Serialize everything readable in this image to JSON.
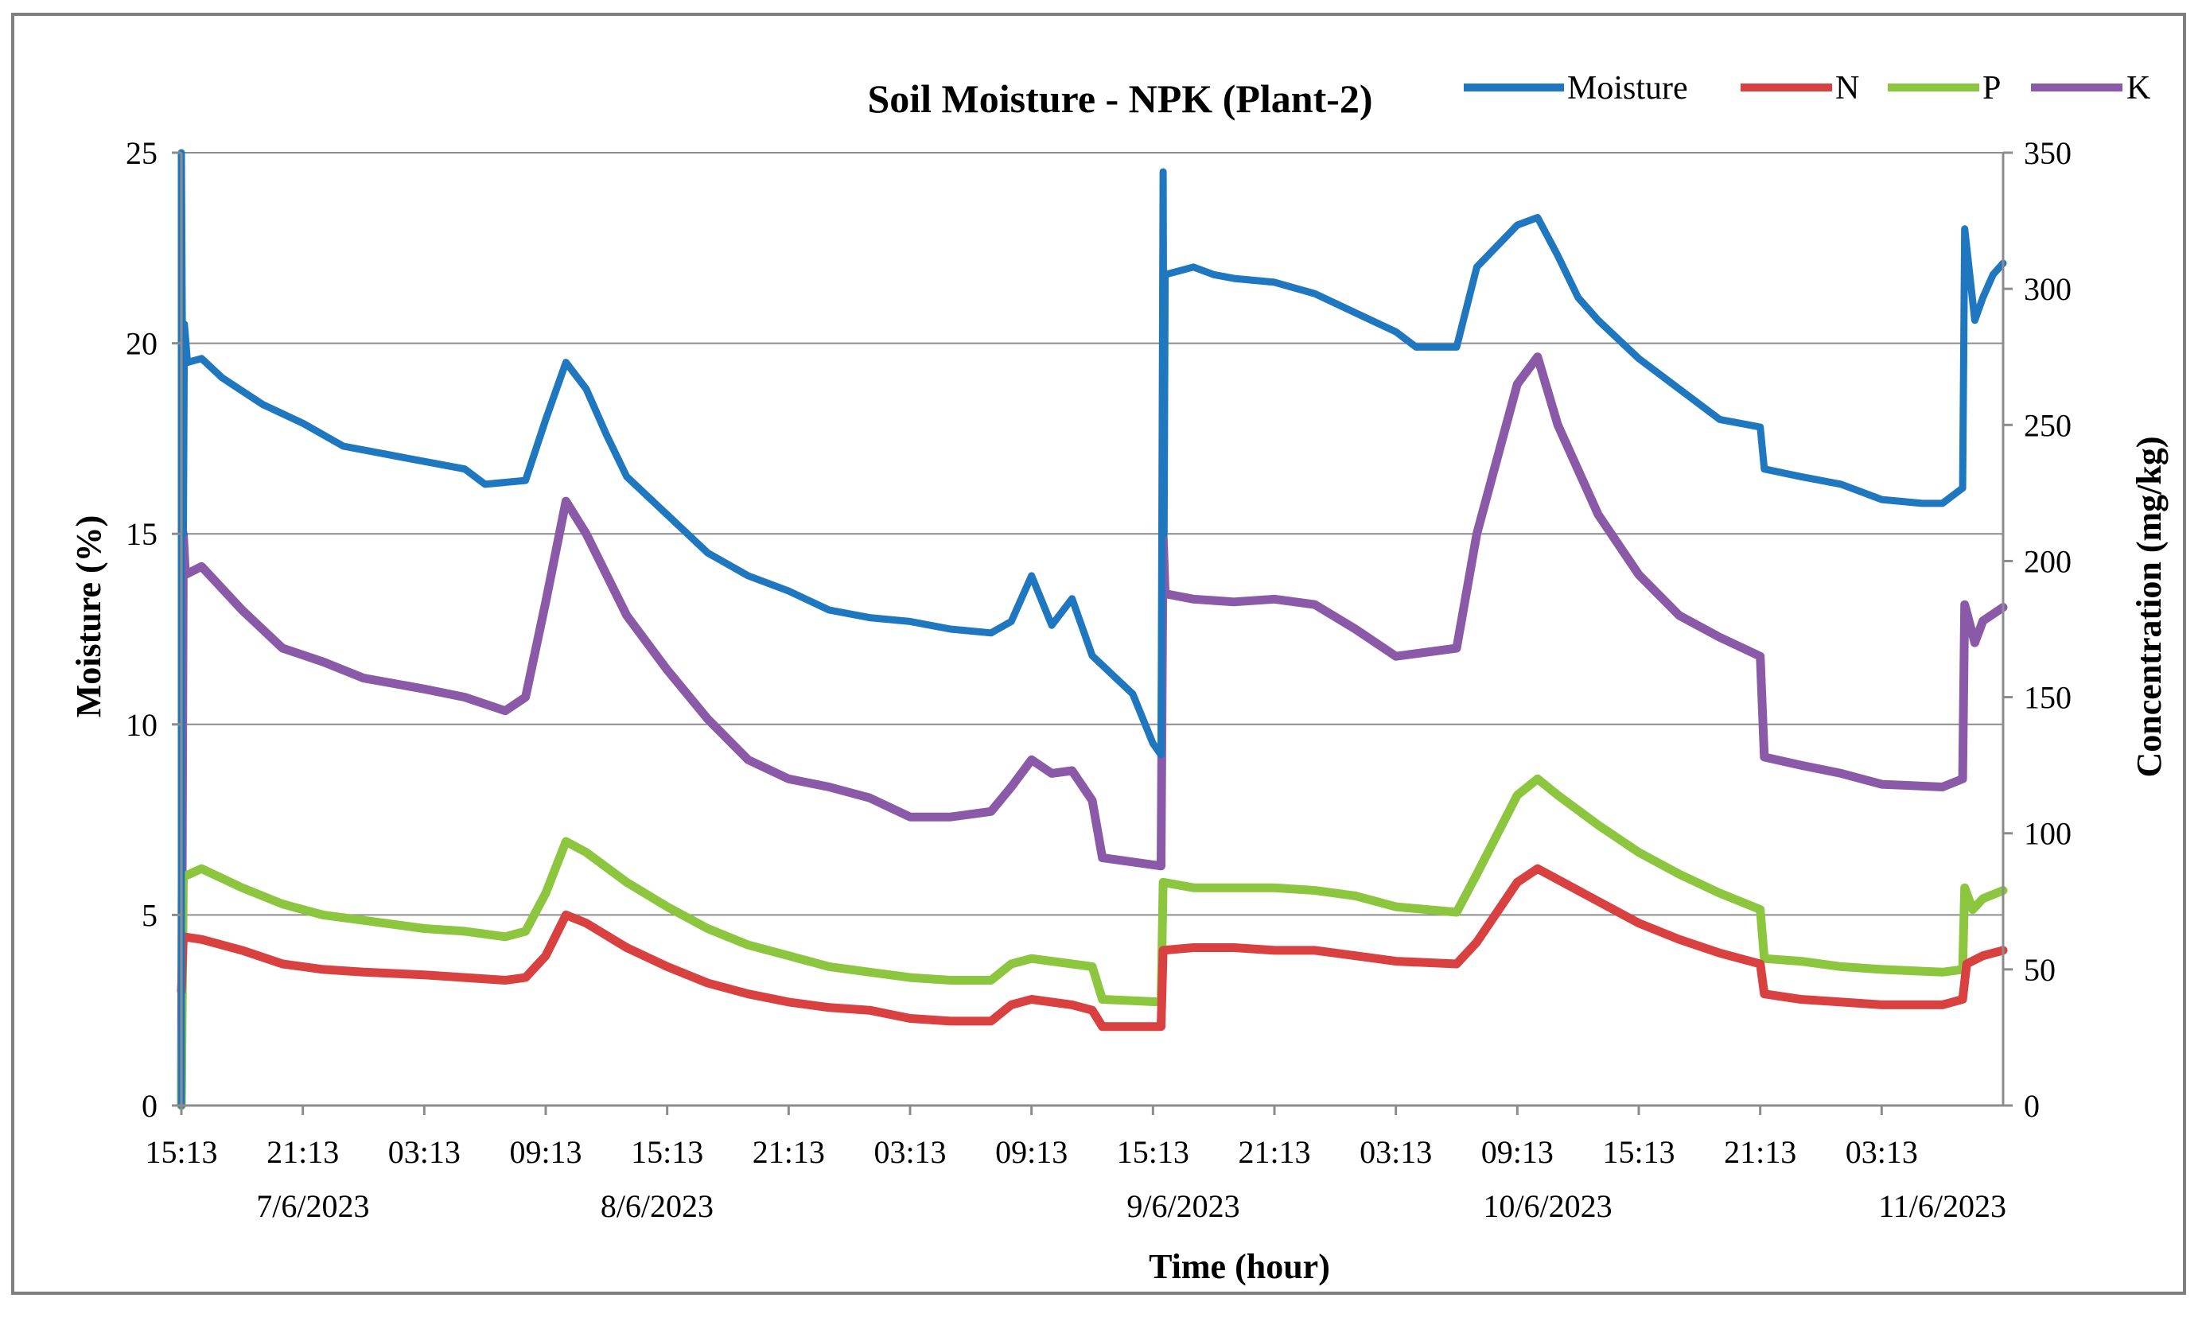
{
  "chart_data": {
    "type": "line",
    "title": "Soil Moisture - NPK (Plant-2)",
    "xlabel": "Time (hour)",
    "ylabel": "Moisture (%)",
    "y2label": "Concentration (mg/kg)",
    "ylim": [
      0,
      25
    ],
    "y2lim": [
      0,
      350
    ],
    "yticks": [
      0,
      5,
      10,
      15,
      20,
      25
    ],
    "y2ticks": [
      0,
      50,
      100,
      150,
      200,
      250,
      300,
      350
    ],
    "grid": "horizontal",
    "legend_position": "top-right",
    "x_range_hours": [
      0,
      90
    ],
    "xticks": [
      {
        "h": 0,
        "label": "15:13"
      },
      {
        "h": 6,
        "label": "21:13"
      },
      {
        "h": 12,
        "label": "03:13"
      },
      {
        "h": 18,
        "label": "09:13"
      },
      {
        "h": 24,
        "label": "15:13"
      },
      {
        "h": 30,
        "label": "21:13"
      },
      {
        "h": 36,
        "label": "03:13"
      },
      {
        "h": 42,
        "label": "09:13"
      },
      {
        "h": 48,
        "label": "15:13"
      },
      {
        "h": 54,
        "label": "21:13"
      },
      {
        "h": 60,
        "label": "03:13"
      },
      {
        "h": 66,
        "label": "09:13"
      },
      {
        "h": 72,
        "label": "15:13"
      },
      {
        "h": 78,
        "label": "21:13"
      },
      {
        "h": 84,
        "label": "03:13"
      }
    ],
    "date_labels": [
      {
        "h": 6.5,
        "label": "7/6/2023"
      },
      {
        "h": 23.5,
        "label": "8/6/2023"
      },
      {
        "h": 49.5,
        "label": "9/6/2023"
      },
      {
        "h": 67.5,
        "label": "10/6/2023"
      },
      {
        "h": 87,
        "label": "11/6/2023"
      }
    ],
    "series": [
      {
        "name": "Moisture",
        "axis": "left",
        "color": "#1f77c0",
        "points": [
          [
            0,
            0
          ],
          [
            0,
            25
          ],
          [
            0.1,
            15
          ],
          [
            0.15,
            20.5
          ],
          [
            0.3,
            19.5
          ],
          [
            1,
            19.6
          ],
          [
            2,
            19.1
          ],
          [
            4,
            18.4
          ],
          [
            6,
            17.9
          ],
          [
            8,
            17.3
          ],
          [
            10,
            17.1
          ],
          [
            12,
            16.9
          ],
          [
            14,
            16.7
          ],
          [
            15,
            16.3
          ],
          [
            17,
            16.4
          ],
          [
            18,
            18
          ],
          [
            19,
            19.5
          ],
          [
            20,
            18.8
          ],
          [
            21,
            17.6
          ],
          [
            22,
            16.5
          ],
          [
            24,
            15.5
          ],
          [
            26,
            14.5
          ],
          [
            28,
            13.9
          ],
          [
            30,
            13.5
          ],
          [
            32,
            13
          ],
          [
            34,
            12.8
          ],
          [
            36,
            12.7
          ],
          [
            38,
            12.5
          ],
          [
            40,
            12.4
          ],
          [
            41,
            12.7
          ],
          [
            42,
            13.9
          ],
          [
            43,
            12.6
          ],
          [
            44,
            13.3
          ],
          [
            45,
            11.8
          ],
          [
            47,
            10.8
          ],
          [
            48,
            9.5
          ],
          [
            48.4,
            9.2
          ],
          [
            48.5,
            24.5
          ],
          [
            48.55,
            15
          ],
          [
            48.6,
            21.8
          ],
          [
            50,
            22
          ],
          [
            51,
            21.8
          ],
          [
            52,
            21.7
          ],
          [
            54,
            21.6
          ],
          [
            56,
            21.3
          ],
          [
            58,
            20.8
          ],
          [
            60,
            20.3
          ],
          [
            61,
            19.9
          ],
          [
            63,
            19.9
          ],
          [
            64,
            22
          ],
          [
            66,
            23.1
          ],
          [
            67,
            23.3
          ],
          [
            68,
            22.3
          ],
          [
            69,
            21.2
          ],
          [
            70,
            20.6
          ],
          [
            72,
            19.6
          ],
          [
            74,
            18.8
          ],
          [
            76,
            18
          ],
          [
            78,
            17.8
          ],
          [
            78.2,
            16.7
          ],
          [
            80,
            16.5
          ],
          [
            82,
            16.3
          ],
          [
            84,
            15.9
          ],
          [
            86,
            15.8
          ],
          [
            87,
            15.8
          ],
          [
            88,
            16.2
          ],
          [
            88.1,
            23
          ],
          [
            88.6,
            20.6
          ],
          [
            89,
            21.2
          ],
          [
            89.5,
            21.8
          ],
          [
            90,
            22.1
          ]
        ]
      },
      {
        "name": "N",
        "axis": "right",
        "color": "#d94040",
        "points": [
          [
            0,
            42
          ],
          [
            0.1,
            62
          ],
          [
            1,
            61
          ],
          [
            3,
            57
          ],
          [
            5,
            52
          ],
          [
            7,
            50
          ],
          [
            9,
            49
          ],
          [
            12,
            48
          ],
          [
            14,
            47
          ],
          [
            16,
            46
          ],
          [
            17,
            47
          ],
          [
            18,
            55
          ],
          [
            19,
            70
          ],
          [
            20,
            67
          ],
          [
            22,
            58
          ],
          [
            24,
            51
          ],
          [
            26,
            45
          ],
          [
            28,
            41
          ],
          [
            30,
            38
          ],
          [
            32,
            36
          ],
          [
            34,
            35
          ],
          [
            36,
            32
          ],
          [
            38,
            31
          ],
          [
            40,
            31
          ],
          [
            41,
            37
          ],
          [
            42,
            39
          ],
          [
            44,
            37
          ],
          [
            45,
            35
          ],
          [
            45.5,
            29
          ],
          [
            48.4,
            29
          ],
          [
            48.5,
            57
          ],
          [
            50,
            58
          ],
          [
            52,
            58
          ],
          [
            54,
            57
          ],
          [
            56,
            57
          ],
          [
            58,
            55
          ],
          [
            60,
            53
          ],
          [
            63,
            52
          ],
          [
            64,
            60
          ],
          [
            66,
            82
          ],
          [
            67,
            87
          ],
          [
            68,
            83
          ],
          [
            70,
            75
          ],
          [
            72,
            67
          ],
          [
            74,
            61
          ],
          [
            76,
            56
          ],
          [
            78,
            52
          ],
          [
            78.2,
            41
          ],
          [
            80,
            39
          ],
          [
            82,
            38
          ],
          [
            84,
            37
          ],
          [
            87,
            37
          ],
          [
            88,
            39
          ],
          [
            88.2,
            52
          ],
          [
            89,
            55
          ],
          [
            90,
            57
          ]
        ]
      },
      {
        "name": "P",
        "axis": "right",
        "color": "#8cc63e",
        "points": [
          [
            0,
            0
          ],
          [
            0.1,
            84
          ],
          [
            1,
            87
          ],
          [
            3,
            80
          ],
          [
            5,
            74
          ],
          [
            7,
            70
          ],
          [
            9,
            68
          ],
          [
            12,
            65
          ],
          [
            14,
            64
          ],
          [
            16,
            62
          ],
          [
            17,
            64
          ],
          [
            18,
            78
          ],
          [
            19,
            97
          ],
          [
            20,
            93
          ],
          [
            22,
            82
          ],
          [
            24,
            73
          ],
          [
            26,
            65
          ],
          [
            28,
            59
          ],
          [
            30,
            55
          ],
          [
            32,
            51
          ],
          [
            34,
            49
          ],
          [
            36,
            47
          ],
          [
            38,
            46
          ],
          [
            40,
            46
          ],
          [
            41,
            52
          ],
          [
            42,
            54
          ],
          [
            44,
            52
          ],
          [
            45,
            51
          ],
          [
            45.5,
            39
          ],
          [
            48.4,
            38
          ],
          [
            48.5,
            82
          ],
          [
            50,
            80
          ],
          [
            52,
            80
          ],
          [
            54,
            80
          ],
          [
            56,
            79
          ],
          [
            58,
            77
          ],
          [
            60,
            73
          ],
          [
            63,
            71
          ],
          [
            64,
            85
          ],
          [
            66,
            114
          ],
          [
            67,
            120
          ],
          [
            68,
            114
          ],
          [
            70,
            103
          ],
          [
            72,
            93
          ],
          [
            74,
            85
          ],
          [
            76,
            78
          ],
          [
            78,
            72
          ],
          [
            78.2,
            54
          ],
          [
            80,
            53
          ],
          [
            82,
            51
          ],
          [
            84,
            50
          ],
          [
            87,
            49
          ],
          [
            88,
            50
          ],
          [
            88.1,
            80
          ],
          [
            88.5,
            72
          ],
          [
            89,
            76
          ],
          [
            90,
            79
          ]
        ]
      },
      {
        "name": "K",
        "axis": "right",
        "color": "#8a5aa8",
        "points": [
          [
            0,
            0
          ],
          [
            0.1,
            210
          ],
          [
            0.2,
            195
          ],
          [
            1,
            198
          ],
          [
            3,
            182
          ],
          [
            5,
            168
          ],
          [
            7,
            163
          ],
          [
            9,
            157
          ],
          [
            12,
            153
          ],
          [
            14,
            150
          ],
          [
            16,
            145
          ],
          [
            17,
            150
          ],
          [
            18,
            185
          ],
          [
            19,
            222
          ],
          [
            20,
            210
          ],
          [
            22,
            180
          ],
          [
            24,
            160
          ],
          [
            26,
            142
          ],
          [
            28,
            127
          ],
          [
            30,
            120
          ],
          [
            32,
            117
          ],
          [
            34,
            113
          ],
          [
            36,
            106
          ],
          [
            38,
            106
          ],
          [
            40,
            108
          ],
          [
            41,
            117
          ],
          [
            42,
            127
          ],
          [
            43,
            122
          ],
          [
            44,
            123
          ],
          [
            45,
            112
          ],
          [
            45.5,
            91
          ],
          [
            48.4,
            88
          ],
          [
            48.5,
            210
          ],
          [
            48.6,
            188
          ],
          [
            50,
            186
          ],
          [
            52,
            185
          ],
          [
            54,
            186
          ],
          [
            56,
            184
          ],
          [
            58,
            175
          ],
          [
            60,
            165
          ],
          [
            63,
            168
          ],
          [
            64,
            210
          ],
          [
            66,
            265
          ],
          [
            67,
            275
          ],
          [
            68,
            250
          ],
          [
            70,
            217
          ],
          [
            72,
            195
          ],
          [
            74,
            180
          ],
          [
            76,
            172
          ],
          [
            78,
            165
          ],
          [
            78.2,
            128
          ],
          [
            80,
            125
          ],
          [
            82,
            122
          ],
          [
            84,
            118
          ],
          [
            87,
            117
          ],
          [
            88,
            120
          ],
          [
            88.1,
            184
          ],
          [
            88.6,
            170
          ],
          [
            89,
            178
          ],
          [
            90,
            183
          ]
        ]
      }
    ]
  }
}
